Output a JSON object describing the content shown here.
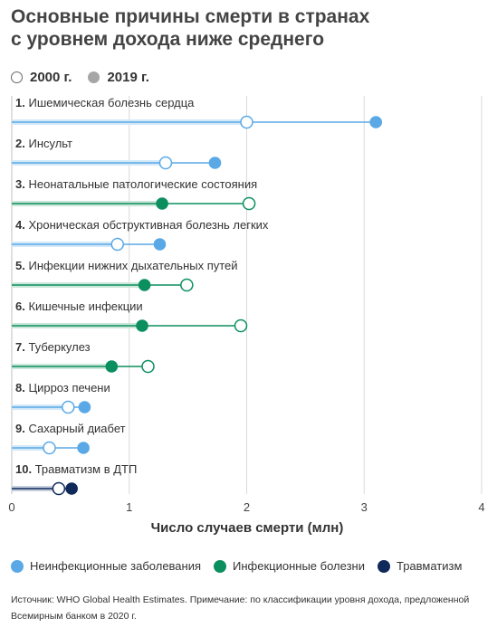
{
  "title_line1": "Основные причины смерти в странах",
  "title_line2": "с уровнем дохода ниже среднего",
  "year_legend": {
    "open": "2000 г.",
    "filled": "2019 г."
  },
  "category_legend": [
    {
      "label": "Неинфекционные заболевания",
      "color": "#5aa9e6"
    },
    {
      "label": "Инфекционные болезни",
      "color": "#0b8f5f"
    },
    {
      "label": "Травматизм",
      "color": "#0f2a5a"
    }
  ],
  "source": "Источник: WHO Global Health Estimates. Примечание: по классификации уровня дохода, предложенной Всемирным банком в 2020 г.",
  "chart_data": {
    "type": "dot-plot",
    "xlabel": "Число случаев смерти (млн)",
    "xlim": [
      0,
      4
    ],
    "xticks": [
      "0",
      "1",
      "2",
      "3",
      "4"
    ],
    "series": [
      {
        "name": "2000 г.",
        "marker": "open"
      },
      {
        "name": "2019 г.",
        "marker": "filled"
      }
    ],
    "rows": [
      {
        "rank": "1.",
        "label": "Ишемическая болезнь сердца",
        "group": "Неинфекционные заболевания",
        "v2000": 2.0,
        "v2019": 3.1
      },
      {
        "rank": "2.",
        "label": "Инсульт",
        "group": "Неинфекционные заболевания",
        "v2000": 1.31,
        "v2019": 1.73
      },
      {
        "rank": "3.",
        "label": "Неонатальные патологические состояния",
        "group": "Инфекционные болезни",
        "v2000": 2.02,
        "v2019": 1.28
      },
      {
        "rank": "4.",
        "label": "Хроническая обструктивная болезнь легких",
        "group": "Неинфекционные заболевания",
        "v2000": 0.9,
        "v2019": 1.26
      },
      {
        "rank": "5.",
        "label": "Инфекции нижних дыхательных путей",
        "group": "Инфекционные болезни",
        "v2000": 1.49,
        "v2019": 1.13
      },
      {
        "rank": "6.",
        "label": "Кишечные инфекции",
        "group": "Инфекционные болезни",
        "v2000": 1.95,
        "v2019": 1.11
      },
      {
        "rank": "7.",
        "label": "Туберкулез",
        "group": "Инфекционные болезни",
        "v2000": 1.16,
        "v2019": 0.85
      },
      {
        "rank": "8.",
        "label": "Цирроз печени",
        "group": "Неинфекционные заболевания",
        "v2000": 0.48,
        "v2019": 0.62
      },
      {
        "rank": "9.",
        "label": "Сахарный диабет",
        "group": "Неинфекционные заболевания",
        "v2000": 0.32,
        "v2019": 0.61
      },
      {
        "rank": "10.",
        "label": "Травматизм в ДТП",
        "group": "Травматизм",
        "v2000": 0.4,
        "v2019": 0.51
      }
    ]
  }
}
